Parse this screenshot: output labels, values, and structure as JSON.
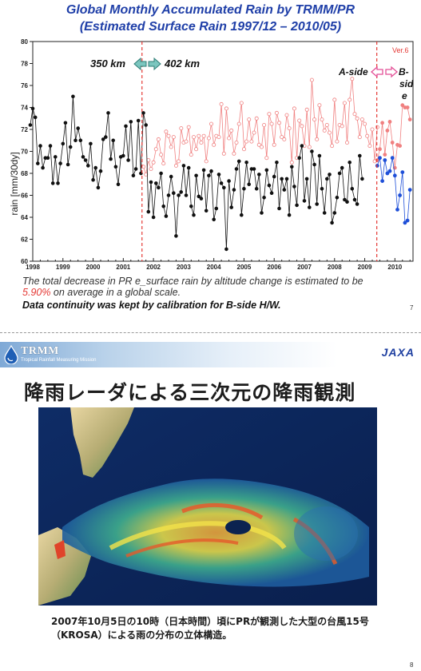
{
  "slide7": {
    "title_line1": "Global Monthly Accumulated Rain by TRMM/PR",
    "title_line2": "(Estimated Surface Rain 1997/12 – 2010/05)",
    "version_label": "Ver.6",
    "left_annotation": "350 km",
    "right_annotation": "402 km",
    "a_side_label": "A-side",
    "b_side_label_1": "B-",
    "b_side_label_2": "sid",
    "b_side_label_3": "e",
    "text_line1": "The total decrease in PR e_surface rain by altitude change is estimated to be",
    "text_pct": "5.90%",
    "text_line2_rest": " on average in a global scale.",
    "text_line3": "Data continuity was kept by calibration for B-side H/W.",
    "page_number": "7"
  },
  "slide8": {
    "org_name": "TRMM",
    "org_subtitle": "Tropical Rainfall Measuring Mission",
    "agency_logo_text": "JAXA",
    "title": "降雨レーダによる三次元の降雨観測",
    "caption_line1": "2007年10月5日の10時（日本時間）頃にPRが観測した大型の台風15号",
    "caption_line2": "（KROSA）による雨の分布の立体構造。",
    "page_number": "8"
  },
  "colors": {
    "title_blue": "#1f3fa8",
    "series_original": "#111111",
    "series_corrected": "#f08080",
    "b_side": "#1e4fd8",
    "event_line": "#e53935",
    "annotation_arrow": "#49a39b"
  },
  "chart_data": {
    "type": "line",
    "title": "",
    "xlabel": "",
    "ylabel": "rain [mm/30dy]",
    "ylim": [
      60,
      80
    ],
    "yticks": [
      60,
      62,
      64,
      66,
      68,
      70,
      72,
      74,
      76,
      78,
      80
    ],
    "xlim": [
      1998.0,
      2010.6
    ],
    "xticks": [
      "1998",
      "1999",
      "2000",
      "2001",
      "2002",
      "2003",
      "2004",
      "2005",
      "2006",
      "2007",
      "2008",
      "2009",
      "2010"
    ],
    "grid": false,
    "vertical_markers": [
      2001.62,
      2009.4
    ],
    "series": [
      {
        "name": "",
        "x_start": 1997.917,
        "x_step": 0.08333,
        "values": [
          72.4,
          73.9,
          73.1,
          68.9,
          70.5,
          68.5,
          69.4,
          69.4,
          70.5,
          67.1,
          69.5,
          67.1,
          68.9,
          70.7,
          72.6,
          68.8,
          70.4,
          75.0,
          71.0,
          72.1,
          71.0,
          69.5,
          69.2,
          68.7,
          70.7,
          67.4,
          68.5,
          66.7,
          68.2,
          71.1,
          71.3,
          73.5,
          69.3,
          71.0,
          68.6,
          67.0,
          69.5,
          69.6,
          72.3,
          69.2,
          72.7,
          67.8,
          68.4,
          72.8,
          68.0,
          73.5,
          72.4,
          64.5,
          67.2,
          64.0,
          67.1,
          66.7,
          68.0,
          65.0,
          64.1,
          66.0,
          67.7,
          66.2,
          62.3,
          66.0,
          66.3,
          68.7,
          66.0,
          68.5,
          65.0,
          64.2,
          67.8,
          65.9,
          65.7,
          68.3,
          64.6,
          67.8,
          68.2,
          63.8,
          64.8,
          67.9,
          67.1,
          66.7,
          61.1,
          67.3,
          64.9,
          66.5,
          68.4,
          69.1,
          64.2,
          66.6,
          69.0,
          67.0,
          68.4,
          68.4,
          66.6,
          67.9,
          64.4,
          65.8,
          68.3,
          66.9,
          66.2,
          67.7,
          69.0,
          64.8,
          67.5,
          66.5,
          67.5,
          64.2,
          68.6,
          66.8,
          65.1,
          69.4,
          70.5,
          65.5,
          67.5,
          64.9,
          70.0,
          68.8,
          65.2,
          69.6,
          66.6,
          64.4,
          67.5,
          67.9,
          63.5,
          64.4,
          65.8,
          68.0,
          68.5,
          65.6,
          65.4,
          69.0,
          66.6,
          65.6,
          65.2,
          69.6,
          67.5
        ]
      },
      {
        "name": "",
        "x_start": 2001.667,
        "x_step": 0.08333,
        "values": [
          68.6,
          67.9,
          69.2,
          68.4,
          69.0,
          70.2,
          71.1,
          69.7,
          68.9,
          71.8,
          71.4,
          70.4,
          71.3,
          68.7,
          69.1,
          72.1,
          70.8,
          70.9,
          72.2,
          69.7,
          71.3,
          70.2,
          71.4,
          70.8,
          71.4,
          69.1,
          71.2,
          72.5,
          70.6,
          71.4,
          71.3,
          74.3,
          69.8,
          73.9,
          71.2,
          71.9,
          69.8,
          70.8,
          72.5,
          74.4,
          70.2,
          70.9,
          72.9,
          70.9,
          71.7,
          73.0,
          70.6,
          70.4,
          72.4,
          69.4,
          73.4,
          72.5,
          70.6,
          73.5,
          72.6,
          71.3,
          71.1,
          73.3,
          72.1,
          69.0,
          73.9,
          69.4,
          72.8,
          72.3,
          70.5,
          73.8,
          70.4,
          76.5,
          72.9,
          71.1,
          74.2,
          72.9,
          71.9,
          72.4,
          71.7,
          70.5,
          74.7,
          70.9,
          72.4,
          72.3,
          74.4,
          70.8,
          74.7,
          76.6,
          73.4,
          73.0,
          71.3,
          72.9,
          72.5,
          71.4,
          70.5,
          72.0,
          69.1,
          72.2
        ]
      },
      {
        "name": "",
        "x_start": 2009.417,
        "x_step": 0.08333,
        "values": [
          69.2,
          70.2,
          72.6,
          69.7,
          71.9,
          72.7,
          70.8,
          68.5,
          70.6,
          70.5,
          74.2,
          74.0,
          74.0,
          72.9
        ]
      },
      {
        "name": "",
        "x_start": 2009.417,
        "x_step": 0.08333,
        "values": [
          68.7,
          69.4,
          67.3,
          69.2,
          68.0,
          68.2,
          69.4,
          67.8,
          64.7,
          66.0,
          68.1,
          63.5,
          63.7,
          66.5
        ]
      }
    ]
  }
}
